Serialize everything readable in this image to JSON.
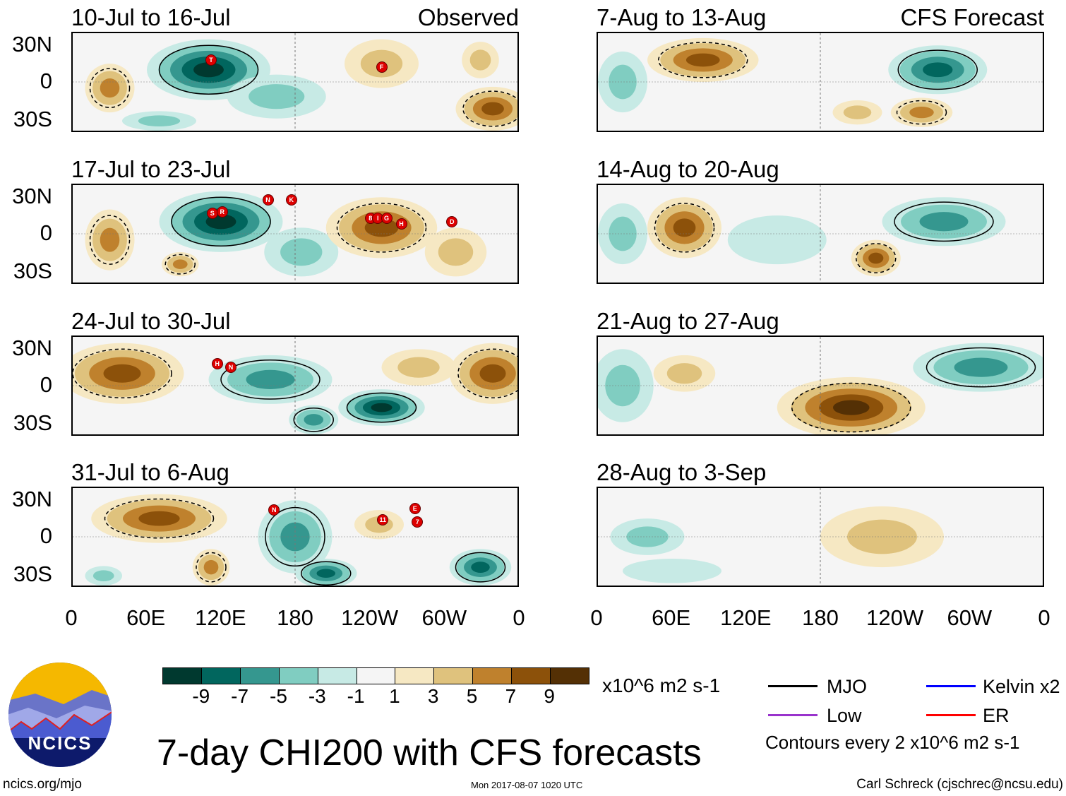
{
  "panels": [
    {
      "title": "10-Jul to 16-Jul",
      "label": "Observed",
      "storms": [
        {
          "id": "T",
          "lon": 112,
          "lat": 18
        },
        {
          "id": "F",
          "lon": 250,
          "lat": 12
        }
      ],
      "anomalies": [
        {
          "lon": 110,
          "lat": 10,
          "v": -9,
          "rx": 50,
          "ry": 25
        },
        {
          "lon": 165,
          "lat": -12,
          "v": -3,
          "rx": 40,
          "ry": 18
        },
        {
          "lon": 30,
          "lat": -5,
          "v": 5,
          "rx": 20,
          "ry": 20
        },
        {
          "lon": 250,
          "lat": 15,
          "v": 3,
          "rx": 30,
          "ry": 20
        },
        {
          "lon": 340,
          "lat": -22,
          "v": 7,
          "rx": 30,
          "ry": 18
        },
        {
          "lon": 330,
          "lat": 18,
          "v": 3,
          "rx": 15,
          "ry": 15
        },
        {
          "lon": 70,
          "lat": -32,
          "v": -3,
          "rx": 30,
          "ry": 8
        }
      ]
    },
    {
      "title": "17-Jul to 23-Jul",
      "label": "",
      "storms": [
        {
          "id": "S",
          "lon": 113,
          "lat": 17
        },
        {
          "id": "R",
          "lon": 121,
          "lat": 18
        },
        {
          "id": "N",
          "lon": 158,
          "lat": 28
        },
        {
          "id": "K",
          "lon": 177,
          "lat": 28
        },
        {
          "id": "8",
          "lon": 241,
          "lat": 13
        },
        {
          "id": "I",
          "lon": 247,
          "lat": 13
        },
        {
          "id": "G",
          "lon": 254,
          "lat": 13
        },
        {
          "id": "H",
          "lon": 266,
          "lat": 8
        },
        {
          "id": "D",
          "lon": 307,
          "lat": 10
        }
      ],
      "anomalies": [
        {
          "lon": 120,
          "lat": 10,
          "v": -9,
          "rx": 50,
          "ry": 25
        },
        {
          "lon": 185,
          "lat": -15,
          "v": -3,
          "rx": 30,
          "ry": 20
        },
        {
          "lon": 250,
          "lat": 5,
          "v": 7,
          "rx": 45,
          "ry": 25
        },
        {
          "lon": 30,
          "lat": -5,
          "v": 5,
          "rx": 20,
          "ry": 25
        },
        {
          "lon": 87,
          "lat": -25,
          "v": 5,
          "rx": 15,
          "ry": 10
        },
        {
          "lon": 310,
          "lat": -15,
          "v": 3,
          "rx": 25,
          "ry": 20
        }
      ]
    },
    {
      "title": "24-Jul to 30-Jul",
      "label": "",
      "storms": [
        {
          "id": "H",
          "lon": 117,
          "lat": 18
        },
        {
          "id": "N",
          "lon": 128,
          "lat": 15
        }
      ],
      "anomalies": [
        {
          "lon": 40,
          "lat": 10,
          "v": 7,
          "rx": 50,
          "ry": 25
        },
        {
          "lon": 340,
          "lat": 10,
          "v": 7,
          "rx": 35,
          "ry": 25
        },
        {
          "lon": 160,
          "lat": 5,
          "v": -5,
          "rx": 50,
          "ry": 20
        },
        {
          "lon": 250,
          "lat": -18,
          "v": -9,
          "rx": 35,
          "ry": 15
        },
        {
          "lon": 195,
          "lat": -28,
          "v": -5,
          "rx": 20,
          "ry": 12
        },
        {
          "lon": 280,
          "lat": 15,
          "v": 3,
          "rx": 30,
          "ry": 15
        }
      ]
    },
    {
      "title": "31-Jul to 6-Aug",
      "label": "",
      "storms": [
        {
          "id": "N",
          "lon": 163,
          "lat": 22
        },
        {
          "id": "11",
          "lon": 251,
          "lat": 14
        },
        {
          "id": "E",
          "lon": 277,
          "lat": 23
        },
        {
          "id": "7",
          "lon": 279,
          "lat": 12
        }
      ],
      "anomalies": [
        {
          "lon": 70,
          "lat": 15,
          "v": 7,
          "rx": 55,
          "ry": 20
        },
        {
          "lon": 112,
          "lat": -25,
          "v": 5,
          "rx": 15,
          "ry": 15
        },
        {
          "lon": 180,
          "lat": 0,
          "v": -5,
          "rx": 30,
          "ry": 30
        },
        {
          "lon": 205,
          "lat": -30,
          "v": -7,
          "rx": 25,
          "ry": 12
        },
        {
          "lon": 330,
          "lat": -25,
          "v": -7,
          "rx": 25,
          "ry": 15
        },
        {
          "lon": 248,
          "lat": 10,
          "v": 3,
          "rx": 20,
          "ry": 12
        },
        {
          "lon": 25,
          "lat": -32,
          "v": -3,
          "rx": 15,
          "ry": 8
        }
      ]
    },
    {
      "title": "7-Aug to 13-Aug",
      "label": "CFS Forecast",
      "storms": [],
      "anomalies": [
        {
          "lon": 85,
          "lat": 18,
          "v": 7,
          "rx": 45,
          "ry": 18
        },
        {
          "lon": 275,
          "lat": 10,
          "v": -7,
          "rx": 40,
          "ry": 20
        },
        {
          "lon": 262,
          "lat": -25,
          "v": 5,
          "rx": 25,
          "ry": 12
        },
        {
          "lon": 20,
          "lat": 0,
          "v": -3,
          "rx": 20,
          "ry": 25
        },
        {
          "lon": 210,
          "lat": -25,
          "v": 3,
          "rx": 20,
          "ry": 10
        }
      ]
    },
    {
      "title": "14-Aug to 20-Aug",
      "label": "",
      "storms": [],
      "anomalies": [
        {
          "lon": 70,
          "lat": 5,
          "v": 7,
          "rx": 30,
          "ry": 25
        },
        {
          "lon": 280,
          "lat": 10,
          "v": -5,
          "rx": 50,
          "ry": 20
        },
        {
          "lon": 225,
          "lat": -20,
          "v": 7,
          "rx": 20,
          "ry": 15
        },
        {
          "lon": 20,
          "lat": 0,
          "v": -3,
          "rx": 20,
          "ry": 25
        },
        {
          "lon": 145,
          "lat": -5,
          "v": -1,
          "rx": 40,
          "ry": 20
        }
      ]
    },
    {
      "title": "21-Aug to 27-Aug",
      "label": "",
      "storms": [],
      "anomalies": [
        {
          "lon": 205,
          "lat": -18,
          "v": 9,
          "rx": 60,
          "ry": 25
        },
        {
          "lon": 310,
          "lat": 15,
          "v": -5,
          "rx": 55,
          "ry": 20
        },
        {
          "lon": 20,
          "lat": 0,
          "v": -3,
          "rx": 25,
          "ry": 30
        },
        {
          "lon": 70,
          "lat": 10,
          "v": 3,
          "rx": 25,
          "ry": 15
        }
      ]
    },
    {
      "title": "28-Aug to 3-Sep",
      "label": "",
      "storms": [],
      "anomalies": [
        {
          "lon": 230,
          "lat": 0,
          "v": 3,
          "rx": 50,
          "ry": 25
        },
        {
          "lon": 40,
          "lat": 0,
          "v": -3,
          "rx": 30,
          "ry": 15
        },
        {
          "lon": 60,
          "lat": -28,
          "v": -1,
          "rx": 40,
          "ry": 10
        }
      ]
    }
  ],
  "lat_labels": [
    "30N",
    "0",
    "30S"
  ],
  "lon_labels": [
    "0",
    "60E",
    "120E",
    "180",
    "120W",
    "60W",
    "0"
  ],
  "colorbar": {
    "colors": [
      "#00392f",
      "#01665e",
      "#35978f",
      "#80cdc1",
      "#c7eae5",
      "#f5f5f5",
      "#f6e8c3",
      "#dfc27d",
      "#bf812d",
      "#8c510a",
      "#543005"
    ],
    "labels": [
      "-9",
      "-7",
      "-5",
      "-3",
      "-1",
      "1",
      "3",
      "5",
      "7",
      "9"
    ],
    "units": "x10^6 m2 s-1"
  },
  "legend": {
    "mjo": "MJO",
    "kelvin": "Kelvin x2",
    "low": "Low",
    "er": "ER",
    "contours": "Contours every 2 x10^6 m2 s-1",
    "colors": {
      "mjo": "#000000",
      "kelvin": "#0000ff",
      "low": "#9933cc",
      "er": "#ff0000"
    }
  },
  "title": "7-day CHI200 with CFS forecasts",
  "logo": "NCICS",
  "footer": {
    "url": "ncics.org/mjo",
    "timestamp": "Mon 2017-08-07 1020 UTC",
    "author": "Carl Schreck (cjschrec@ncsu.edu)"
  }
}
